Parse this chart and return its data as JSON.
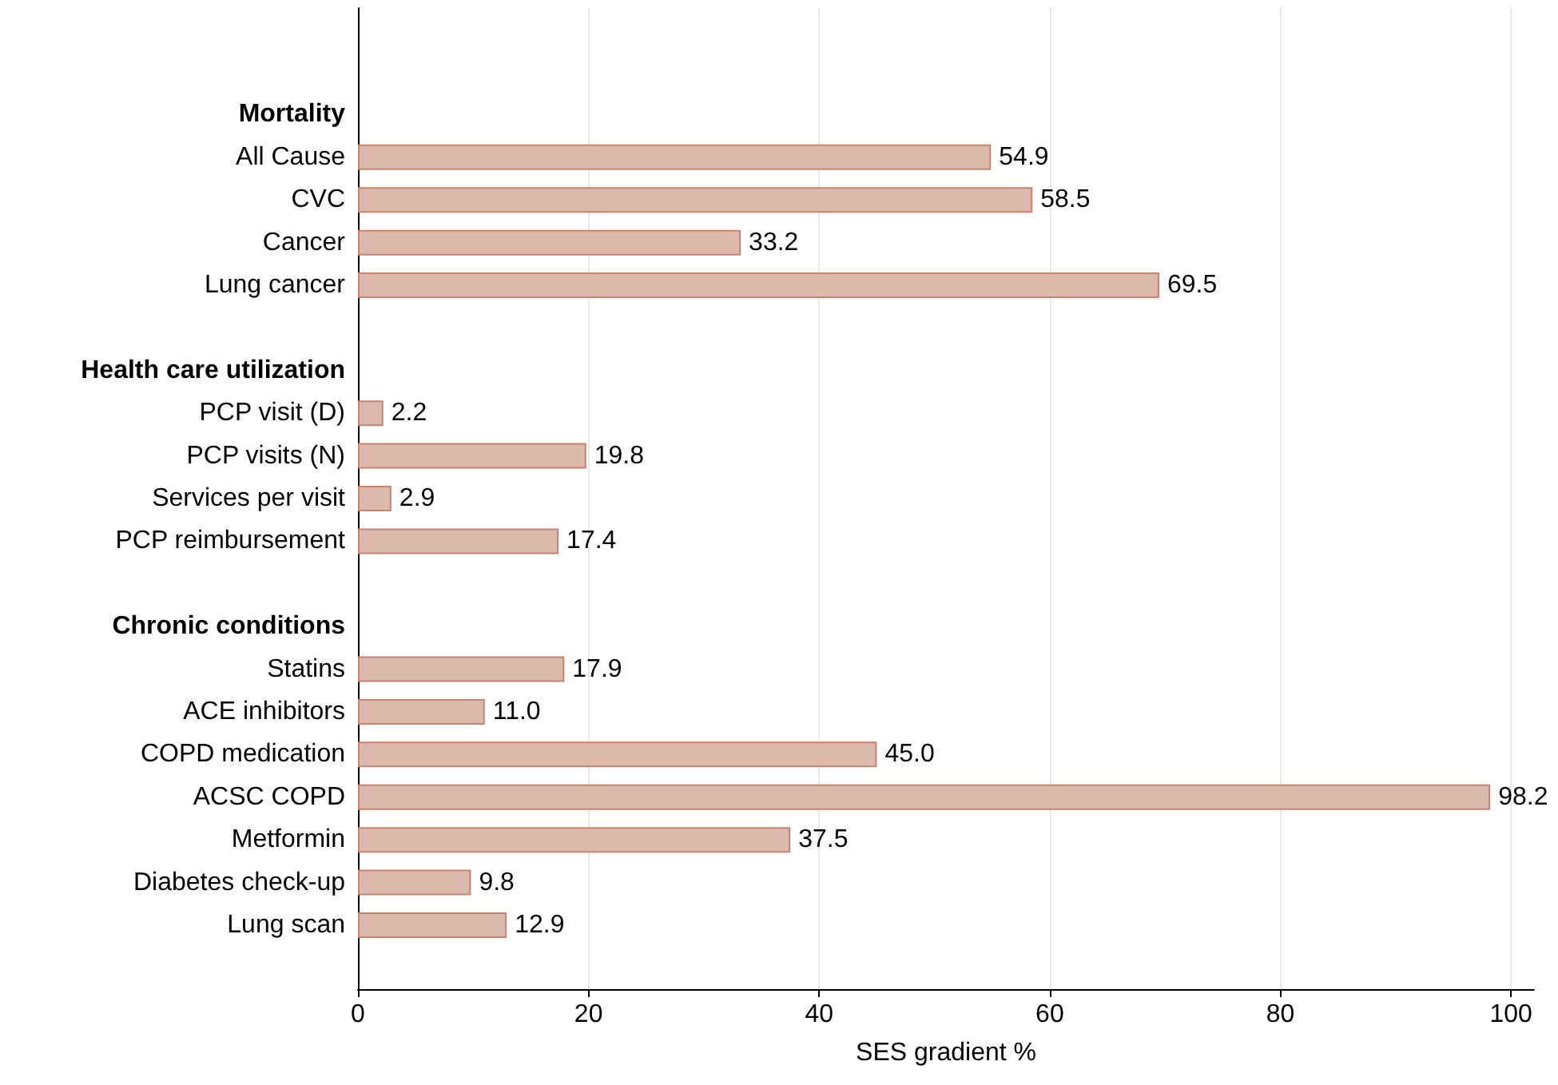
{
  "chart_data": {
    "type": "bar",
    "orientation": "horizontal",
    "xlabel": "SES gradient %",
    "categories": [
      null,
      null,
      "Mortality",
      "All Cause",
      "CVC",
      "Cancer",
      "Lung cancer",
      null,
      "Health care utilization",
      "PCP visit (D)",
      "PCP visits (N)",
      "Services per visit",
      "PCP reimbursement",
      null,
      "Chronic conditions",
      "Statins",
      "ACE inhibitors",
      "COPD medication",
      "ACSC COPD",
      "Metformin",
      "Diabetes check-up",
      "Lung scan",
      null
    ],
    "values": [
      null,
      null,
      null,
      54.9,
      58.5,
      33.2,
      69.5,
      null,
      null,
      2.2,
      19.8,
      2.9,
      17.4,
      null,
      null,
      17.9,
      11.0,
      45.0,
      98.2,
      37.5,
      9.8,
      12.9,
      null
    ],
    "value_labels": [
      null,
      null,
      null,
      "54.9",
      "58.5",
      "33.2",
      "69.5",
      null,
      null,
      "2.2",
      "19.8",
      "2.9",
      "17.4",
      null,
      null,
      "17.9",
      "11.0",
      "45.0",
      "98.2",
      "37.5",
      "9.8",
      "12.9",
      null
    ],
    "color": "#dcb9ad",
    "xlim": [
      0,
      102
    ],
    "xticks": [
      0,
      20,
      40,
      60,
      80,
      100
    ],
    "grid": "x"
  }
}
